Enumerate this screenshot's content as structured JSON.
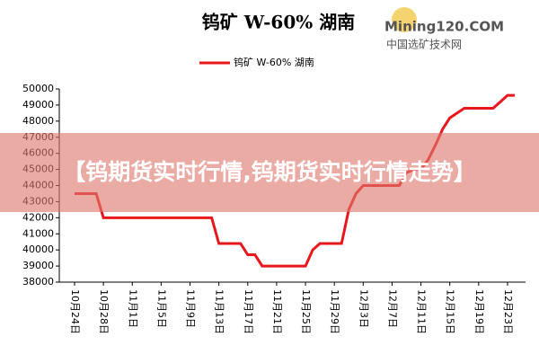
{
  "chart_data": {
    "type": "line",
    "title": "钨矿 W-60% 湖南",
    "categories": [
      "10月24日",
      null,
      null,
      null,
      "10月28日",
      null,
      null,
      null,
      "11月1日",
      null,
      null,
      null,
      "11月5日",
      null,
      null,
      null,
      "11月9日",
      null,
      null,
      null,
      "11月13日",
      null,
      null,
      null,
      "11月17日",
      null,
      null,
      null,
      "11月21日",
      null,
      null,
      null,
      "11月25日",
      null,
      null,
      null,
      "11月29日",
      null,
      null,
      null,
      "12月3日",
      null,
      null,
      null,
      "12月7日",
      null,
      null,
      null,
      "12月11日",
      null,
      null,
      null,
      "12月15日",
      null,
      null,
      null,
      "12月19日",
      null,
      null,
      null,
      "12月23日",
      null
    ],
    "series": [
      {
        "name": "钨矿 W-60% 湖南",
        "color": "#e8171b",
        "values": [
          43500,
          43500,
          43500,
          43500,
          42000,
          42000,
          42000,
          42000,
          42000,
          42000,
          42000,
          42000,
          42000,
          42000,
          42000,
          42000,
          42000,
          42000,
          42000,
          42000,
          40400,
          40400,
          40400,
          40400,
          39700,
          39700,
          39000,
          39000,
          39000,
          39000,
          39000,
          39000,
          39000,
          40000,
          40400,
          40400,
          40400,
          40400,
          42500,
          43500,
          44000,
          44000,
          44000,
          44000,
          44000,
          44000,
          44800,
          45000,
          45000,
          45600,
          46500,
          47500,
          48200,
          48500,
          48800,
          48800,
          48800,
          48800,
          48800,
          49200,
          49600,
          49600
        ]
      }
    ],
    "ylim": [
      38000,
      50000
    ],
    "yticks": [
      38000,
      39000,
      40000,
      41000,
      42000,
      43000,
      44000,
      45000,
      46000,
      47000,
      48000,
      49000,
      50000
    ],
    "grid": false
  },
  "watermark": {
    "logo": "Mining120.COM",
    "site": "中国选矿技术网"
  },
  "overlay": {
    "text": "【钨期货实时行情,钨期货实时行情走势】"
  }
}
